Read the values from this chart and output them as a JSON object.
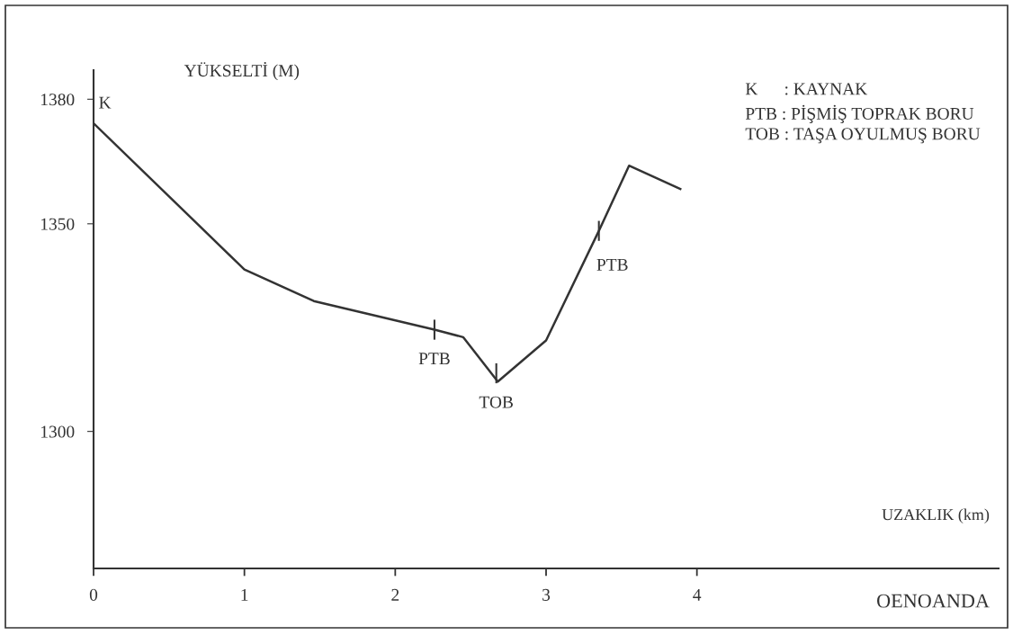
{
  "chart_data": {
    "type": "line",
    "xlabel": "UZAKLIK (km)",
    "ylabel": "YÜKSELTİ (M)",
    "x": [
      0,
      1.0,
      1.46,
      2.26,
      2.45,
      2.68,
      3.0,
      3.35,
      3.55,
      3.89
    ],
    "series": [
      {
        "color": "#333333",
        "values": [
          1374.2,
          1339,
          1331.4,
          1324.5,
          1322.7,
          1312,
          1321.9,
          1348.3,
          1364,
          1358.4
        ]
      }
    ],
    "xlim": [
      0,
      6
    ],
    "xticks": [
      0,
      1,
      2,
      3,
      4
    ],
    "ylim": [
      1267,
      1387
    ],
    "yticks": [
      1300,
      1350,
      1380
    ],
    "grid": false,
    "legend": false,
    "marker": "none",
    "line_style": "solid",
    "annotations": [
      {
        "text": "K",
        "x": 0,
        "y": 1374.2
      },
      {
        "text": "PTB",
        "x": 2.26,
        "y": 1324.5
      },
      {
        "text": "TOB",
        "x": 2.67,
        "y": 1314
      },
      {
        "text": "PTB",
        "x": 3.35,
        "y": 1348.3
      },
      "K      : KAYNAK",
      "PTB : PİŞMİŞ TOPRAK BORU",
      "TOB : TAŞA OYULMUŞ BORU",
      "OENOANDA"
    ]
  }
}
